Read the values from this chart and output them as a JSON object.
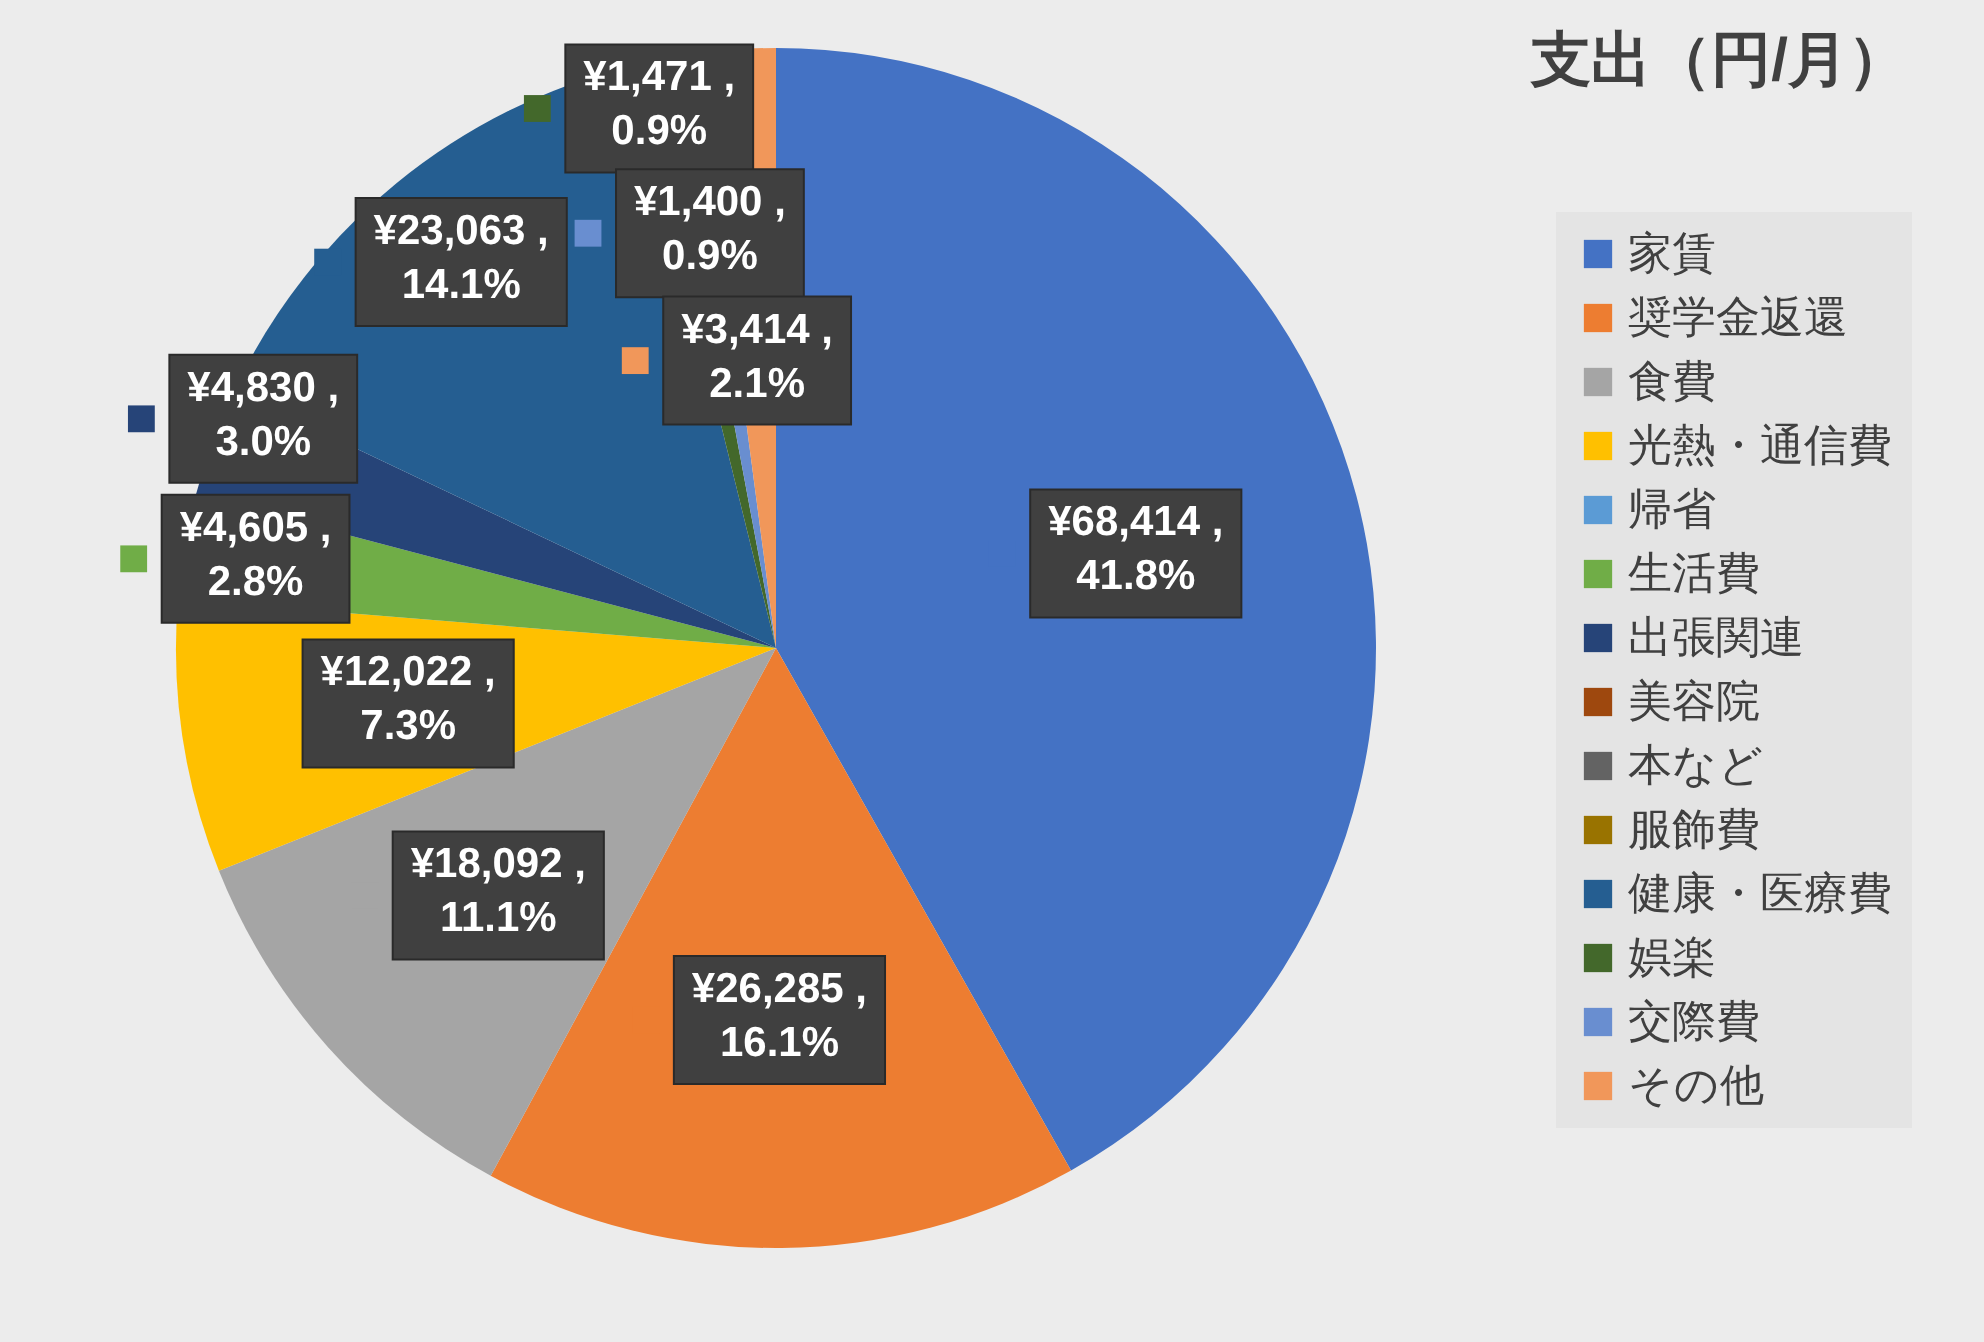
{
  "chart_data": {
    "type": "pie",
    "title": "支出（円/月）",
    "categories": [
      "家賃",
      "奨学金返還",
      "食費",
      "光熱・通信費",
      "帰省",
      "生活費",
      "出張関連",
      "美容院",
      "本など",
      "服飾費",
      "健康・医療費",
      "娯楽",
      "交際費",
      "その他"
    ],
    "values": [
      68414,
      26285,
      18092,
      12022,
      0,
      4605,
      4830,
      0,
      0,
      0,
      23063,
      1471,
      1400,
      3414
    ],
    "colors": [
      "#4472c4",
      "#ed7d31",
      "#a5a5a5",
      "#ffc000",
      "#5b9bd5",
      "#70ad47",
      "#264478",
      "#9e480e",
      "#636363",
      "#997300",
      "#255e91",
      "#43682b",
      "#698ed0",
      "#f1975a"
    ],
    "value_labels": [
      "¥68,414 , 41.8%",
      "¥26,285 , 16.1%",
      "¥18,092 , 11.1%",
      "¥12,022 , 7.3%",
      null,
      "¥4,605 , 2.8%",
      "¥4,830 , 3.0%",
      null,
      null,
      null,
      "¥23,063 , 14.1%",
      "¥1,471 , 0.9%",
      "¥1,400 , 0.9%",
      "¥3,414 , 2.1%"
    ],
    "legend": "right"
  }
}
